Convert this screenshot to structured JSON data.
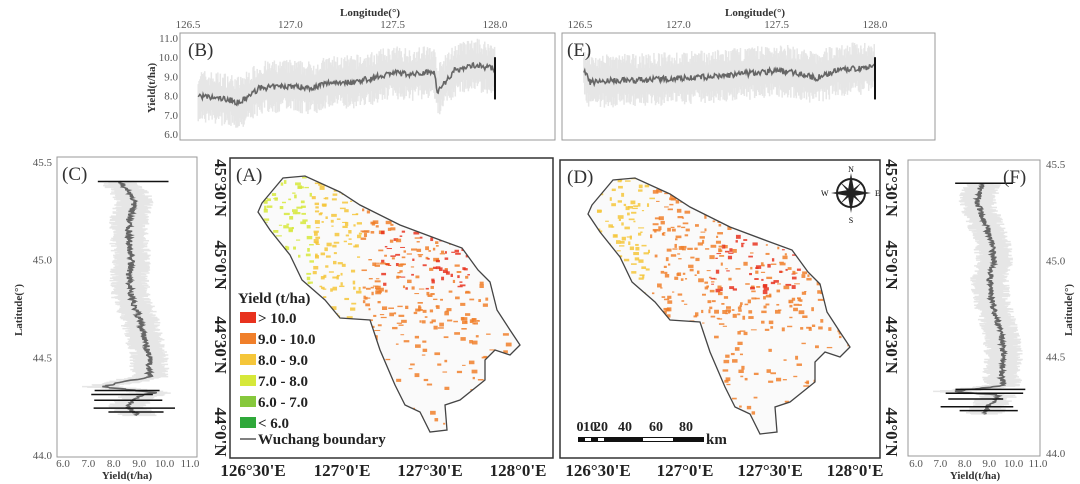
{
  "figure": {
    "panels": {
      "A": "(A)",
      "B": "(B)",
      "C": "(C)",
      "D": "(D)",
      "E": "(E)",
      "F": "(F)"
    },
    "legend": {
      "title": "Yield (t/ha)",
      "items": [
        {
          "label": "> 10.0",
          "color": "#e8321e"
        },
        {
          "label": "9.0 - 10.0",
          "color": "#f07f2a"
        },
        {
          "label": "8.0 - 9.0",
          "color": "#f5c63a"
        },
        {
          "label": "7.0 - 8.0",
          "color": "#d6e83a"
        },
        {
          "label": "6.0 - 7.0",
          "color": "#86c83c"
        },
        {
          "label": "< 6.0",
          "color": "#2fa83a"
        }
      ],
      "boundary_label": "Wuchang boundary"
    },
    "map_lon_ticks": [
      "126°30'E",
      "127°0'E",
      "127°30'E",
      "128°0'E"
    ],
    "map_lat_ticks": [
      "45°30'N",
      "45°0'N",
      "44°30'N",
      "44°0'N"
    ],
    "compass": {
      "N": "N",
      "S": "S",
      "E": "E",
      "W": "W"
    },
    "scale_bar": {
      "labels": [
        "0",
        "10",
        "20",
        "40",
        "60",
        "80"
      ],
      "unit": "km"
    }
  },
  "chart_data": [
    {
      "panel": "B",
      "type": "line",
      "xlabel": "Longitude(°)",
      "ylabel": "Yield(t/ha)",
      "xlim": [
        126.5,
        128.0
      ],
      "ylim": [
        6.0,
        11.0
      ],
      "xticks": [
        "126.5",
        "127.0",
        "127.5",
        "128.0"
      ],
      "yticks": [
        "11.0",
        "10.0",
        "9.0",
        "8.0",
        "7.0",
        "6.0"
      ],
      "x": [
        126.55,
        126.6,
        126.7,
        126.75,
        126.8,
        126.85,
        127.0,
        127.1,
        127.2,
        127.3,
        127.4,
        127.5,
        127.6,
        127.7,
        127.72,
        127.8,
        127.9,
        128.0
      ],
      "y": [
        8.0,
        7.9,
        7.8,
        7.6,
        8.0,
        8.4,
        8.5,
        8.4,
        8.7,
        8.7,
        8.9,
        9.2,
        9.1,
        9.3,
        8.2,
        9.3,
        9.6,
        9.4
      ]
    },
    {
      "panel": "E",
      "type": "line",
      "xlabel": "Longitude(°)",
      "ylabel": "",
      "xlim": [
        126.5,
        128.0
      ],
      "ylim": [
        6.0,
        11.0
      ],
      "xticks": [
        "126.5",
        "127.0",
        "127.5",
        "128.0"
      ],
      "x": [
        126.52,
        126.55,
        126.7,
        126.8,
        127.0,
        127.2,
        127.3,
        127.5,
        127.6,
        127.7,
        127.8,
        127.9,
        128.0
      ],
      "y": [
        9.3,
        8.7,
        8.8,
        8.8,
        8.9,
        9.0,
        9.1,
        9.3,
        9.2,
        8.9,
        9.3,
        9.4,
        9.5
      ]
    },
    {
      "panel": "C",
      "type": "line",
      "xlabel": "Yield(t/ha)",
      "ylabel": "Latitude(°)",
      "xlim": [
        6.0,
        11.0
      ],
      "ylim": [
        44.0,
        45.5
      ],
      "xticks": [
        "6.0",
        "7.0",
        "8.0",
        "9.0",
        "10.0",
        "11.0"
      ],
      "yticks": [
        "45.5",
        "45.0",
        "44.5",
        "44.0"
      ],
      "lat": [
        45.4,
        45.35,
        45.3,
        45.2,
        45.1,
        45.0,
        44.9,
        44.8,
        44.7,
        44.6,
        44.5,
        44.4,
        44.35,
        44.32,
        44.3,
        44.25,
        44.2
      ],
      "yield": [
        8.2,
        8.6,
        8.8,
        8.6,
        8.6,
        8.7,
        8.6,
        8.7,
        9.0,
        9.2,
        9.4,
        9.4,
        7.5,
        9.6,
        9.0,
        8.5,
        9.0
      ]
    },
    {
      "panel": "F",
      "type": "line",
      "xlabel": "Yield(t/ha)",
      "ylabel": "Latitude(°)",
      "xlim": [
        6.0,
        11.0
      ],
      "ylim": [
        44.0,
        45.5
      ],
      "xticks": [
        "6.0",
        "7.0",
        "8.0",
        "9.0",
        "10.0",
        "11.0"
      ],
      "yticks": [
        "45.5",
        "45.0",
        "44.5",
        "44.0"
      ],
      "lat": [
        45.4,
        45.35,
        45.3,
        45.2,
        45.1,
        45.0,
        44.9,
        44.8,
        44.7,
        44.6,
        44.5,
        44.4,
        44.35,
        44.32,
        44.3,
        44.25,
        44.2
      ],
      "yield": [
        8.7,
        8.6,
        8.5,
        8.8,
        9.1,
        9.2,
        9.0,
        9.1,
        9.3,
        9.5,
        9.6,
        9.5,
        9.6,
        7.5,
        9.4,
        9.0,
        8.8
      ]
    }
  ]
}
